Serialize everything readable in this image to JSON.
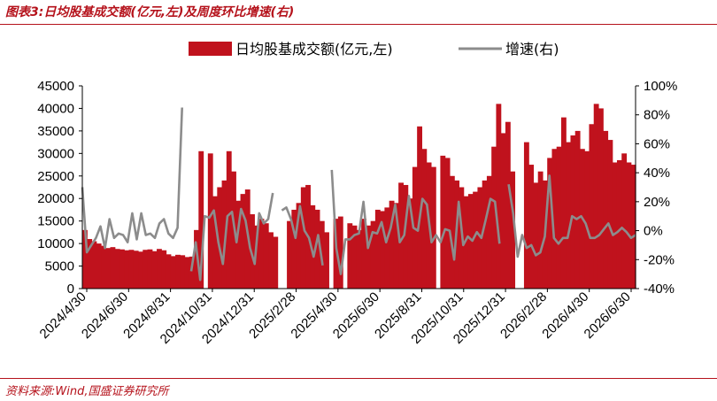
{
  "figure_title": "图表3:日均股基成交额(亿元,左)及周度环比增速(右)",
  "source_note": "资料来源:Wind,国盛证券研究所",
  "colors": {
    "bar": "#c0121d",
    "line": "#8c8c8c",
    "accent": "#b5121b"
  },
  "chart_data": {
    "type": "bar+line",
    "title": "",
    "legend": [
      {
        "label": "日均股基成交额(亿元,左)",
        "type": "bar",
        "color": "#c0121d"
      },
      {
        "label": "增速(右)",
        "type": "line",
        "color": "#8c8c8c"
      }
    ],
    "legend_position": "top",
    "y_left": {
      "min": 0,
      "max": 45000,
      "ticks": [
        0,
        5000,
        10000,
        15000,
        20000,
        25000,
        30000,
        35000,
        40000,
        45000
      ]
    },
    "y_right": {
      "min": -40,
      "max": 100,
      "unit": "%",
      "ticks": [
        -40,
        -20,
        0,
        20,
        40,
        60,
        80,
        100
      ]
    },
    "x_tick_labels": [
      "2024/4/30",
      "2024/6/30",
      "2024/8/31",
      "2024/10/31",
      "2024/12/31",
      "2025/2/28",
      "2025/4/30",
      "2025/6/30",
      "2025/8/31",
      "2025/10/31",
      "2025/12/31",
      "2026/2/28",
      "2026/4/30",
      "2026/6/30"
    ],
    "grid": false,
    "series": [
      {
        "name": "日均股基成交额(亿元,左)",
        "type": "bar",
        "values": [
          13000,
          11000,
          10500,
          10000,
          9500,
          9000,
          9200,
          8800,
          8700,
          8500,
          8600,
          8400,
          8200,
          8600,
          8700,
          8300,
          8800,
          8500,
          7600,
          7200,
          7500,
          7400,
          7000,
          7100,
          13000,
          30500,
          null,
          30000,
          20500,
          22500,
          24000,
          30500,
          26000,
          19500,
          21000,
          22000,
          16500,
          14000,
          15500,
          14500,
          12500,
          11500,
          null,
          null,
          15000,
          17500,
          19000,
          22500,
          23000,
          18500,
          17500,
          15000,
          12500,
          null,
          15500,
          16000,
          null,
          14500,
          14000,
          13000,
          15500,
          14000,
          15000,
          17500,
          17200,
          18000,
          19500,
          19000,
          23500,
          23000,
          20000,
          27000,
          36000,
          31000,
          28000,
          27000,
          null,
          29500,
          29000,
          25000,
          24000,
          22500,
          20500,
          21000,
          21500,
          22500,
          24000,
          25000,
          31500,
          41000,
          34500,
          37000,
          26000,
          null,
          null,
          32500,
          27500,
          23500,
          26000,
          24000,
          29000,
          31000,
          31500,
          38000,
          32500,
          34000,
          35000,
          31000,
          30500,
          36500,
          41000,
          40000,
          35000,
          33000,
          28000,
          28500,
          30000,
          28000,
          27500
        ],
        "gaps": [
          26,
          42,
          43,
          53,
          56,
          76,
          93,
          94
        ]
      },
      {
        "name": "增速(右)",
        "type": "line",
        "values": [
          30,
          -15,
          -10,
          -5,
          3,
          -12,
          8,
          -5,
          -2,
          -3,
          -8,
          12,
          -6,
          12,
          -3,
          -2,
          -5,
          5,
          8,
          -2,
          -5,
          2,
          85,
          null,
          -28,
          -8,
          -34,
          10,
          9,
          14,
          -8,
          -23,
          10,
          13,
          -8,
          15,
          7,
          -12,
          -23,
          12,
          5,
          8,
          26,
          null,
          14,
          16,
          8,
          -5,
          17,
          0,
          -5,
          -18,
          -3,
          -24,
          null,
          42,
          -12,
          -30,
          -6,
          -6,
          -3,
          -2,
          20,
          -12,
          -1,
          -2,
          6,
          -8,
          2,
          18,
          -8,
          -3,
          24,
          2,
          0,
          22,
          18,
          -8,
          -3,
          -8,
          1,
          0,
          -20,
          20,
          -10,
          -4,
          -7,
          -1,
          -5,
          8,
          22,
          20,
          -9,
          null,
          32,
          12,
          -18,
          -3,
          -12,
          -10,
          -17,
          -15,
          -4,
          38,
          -5,
          -9,
          -5,
          -5,
          10,
          8,
          10,
          5,
          -5,
          -5,
          -3,
          1,
          5,
          -3,
          -1,
          2,
          -1,
          -5,
          -3
        ]
      }
    ]
  }
}
